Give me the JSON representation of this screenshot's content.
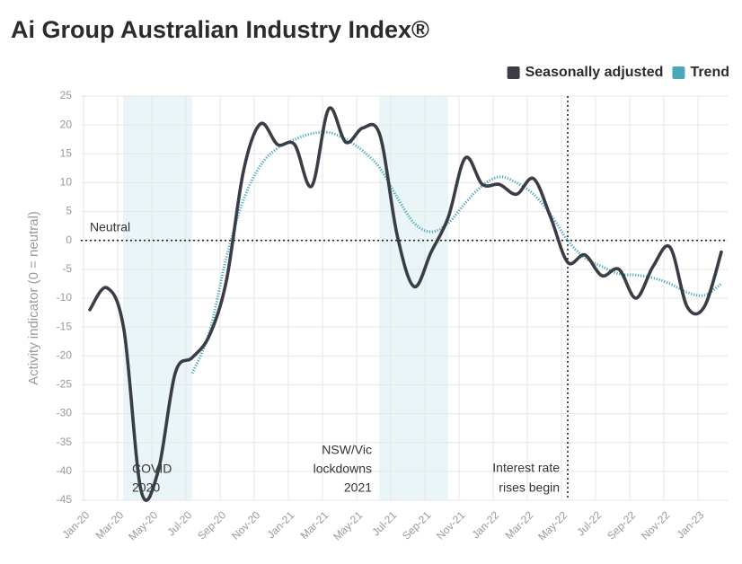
{
  "chart_data": {
    "type": "line",
    "title": "Ai Group Australian Industry Index®",
    "y_label": "Activity indicator (0 = neutral)",
    "categories": [
      "Jan-20",
      null,
      "Mar-20",
      null,
      "May-20",
      null,
      "Jul-20",
      null,
      "Sep-20",
      null,
      "Nov-20",
      null,
      "Jan-21",
      null,
      "Mar-21",
      null,
      "May-21",
      null,
      "Jul-21",
      null,
      "Sep-21",
      null,
      "Nov-21",
      null,
      "Jan-22",
      null,
      "Mar-22",
      null,
      "May-22",
      null,
      "Jul-22",
      null,
      "Sep-22",
      null,
      "Nov-22",
      null,
      "Jan-23",
      null
    ],
    "series": [
      {
        "name": "Seasonally adjusted",
        "color": "#3a3d46",
        "style": "solid",
        "values": [
          -12,
          -8.2,
          -15.5,
          -43.3,
          -40,
          -23,
          -20.3,
          -16.5,
          -7,
          12,
          20.2,
          16.6,
          16.6,
          9.4,
          22.8,
          17,
          19.5,
          18.2,
          1,
          -8,
          -2,
          4,
          14.3,
          9.7,
          9.7,
          8,
          10.7,
          4,
          -3.8,
          -2.5,
          -6.1,
          -5,
          -10,
          -4.5,
          -1.2,
          -11.5,
          -11.5,
          -2
        ]
      },
      {
        "name": "Trend",
        "color": "#4aa8b8",
        "style": "dotted",
        "values": [
          null,
          null,
          null,
          null,
          null,
          null,
          -23,
          -16,
          -3,
          7,
          13,
          16,
          17.5,
          18.5,
          18.7,
          17.5,
          15.5,
          12.5,
          7.5,
          3,
          1.5,
          3,
          6.5,
          9.5,
          11,
          10,
          8,
          4.5,
          0,
          -3,
          -4.5,
          -5.8,
          -6,
          -6.5,
          -7.5,
          -9,
          -9.5,
          -7.5
        ]
      }
    ],
    "ylim": [
      -45,
      25
    ],
    "yticks": [
      -45,
      -40,
      -35,
      -30,
      -25,
      -20,
      -15,
      -10,
      -5,
      0,
      5,
      10,
      15,
      20,
      25
    ],
    "grid": true,
    "legend": "top-right",
    "reference_line": {
      "label": "Neutral",
      "value": 0
    },
    "shaded_regions": [
      {
        "lines": [
          "COVID",
          "2020"
        ],
        "start": 2,
        "end": 6,
        "color": "#eaf5f8"
      },
      {
        "lines": [
          "NSW/Vic",
          "lockdowns",
          "2021"
        ],
        "start": 17,
        "end": 21,
        "color": "#eaf5f8"
      }
    ],
    "vertical_marker": {
      "lines": [
        "Interest rate",
        "rises begin"
      ],
      "at": 28
    }
  }
}
